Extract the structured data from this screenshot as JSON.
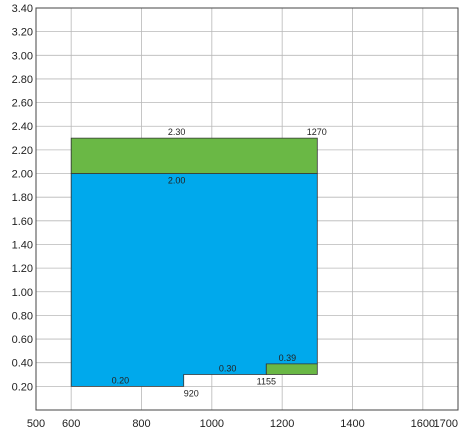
{
  "chart_data": {
    "type": "area",
    "title": "",
    "xlabel": "",
    "ylabel": "",
    "xlim": [
      500,
      1700
    ],
    "ylim": [
      0,
      3.4
    ],
    "x_ticks": [
      500,
      600,
      800,
      1000,
      1200,
      1400,
      1600,
      1700
    ],
    "x_tick_labels": [
      "500",
      "600",
      "800",
      "1000",
      "1200",
      "1400",
      "1600",
      "1700"
    ],
    "y_ticks": [
      0.2,
      0.4,
      0.6,
      0.8,
      1.0,
      1.2,
      1.4,
      1.6,
      1.8,
      2.0,
      2.2,
      2.4,
      2.6,
      2.8,
      3.0,
      3.2,
      3.4
    ],
    "y_tick_labels": [
      "0.20",
      "0.40",
      "0.60",
      "0.80",
      "1.00",
      "1.20",
      "1.40",
      "1.60",
      "1.80",
      "2.00",
      "2.20",
      "2.40",
      "2.60",
      "2.80",
      "3.00",
      "3.20",
      "3.40"
    ],
    "grid": true,
    "regions": [
      {
        "color": "#00a9ec",
        "points": [
          [
            600,
            0.2
          ],
          [
            920,
            0.2
          ],
          [
            920,
            0.3
          ],
          [
            1155,
            0.3
          ],
          [
            1155,
            0.39
          ],
          [
            1300,
            0.39
          ],
          [
            1300,
            2.0
          ],
          [
            600,
            2.0
          ]
        ]
      },
      {
        "color": "#6ab845",
        "points": [
          [
            600,
            2.0
          ],
          [
            1300,
            2.0
          ],
          [
            1300,
            2.3
          ],
          [
            600,
            2.3
          ]
        ]
      },
      {
        "color": "#6ab845",
        "points": [
          [
            1155,
            0.3
          ],
          [
            1300,
            0.3
          ],
          [
            1300,
            0.39
          ],
          [
            1155,
            0.39
          ]
        ]
      }
    ],
    "annotations": [
      {
        "text": "2.30",
        "x": 900,
        "y": 2.3,
        "anchor": "middle",
        "valign": "above"
      },
      {
        "text": "1270",
        "x": 1270,
        "y": 2.3,
        "anchor": "start",
        "valign": "above"
      },
      {
        "text": "2.00",
        "x": 900,
        "y": 2.0,
        "anchor": "middle",
        "valign": "below"
      },
      {
        "text": "0.20",
        "x": 740,
        "y": 0.2,
        "anchor": "middle",
        "valign": "above"
      },
      {
        "text": "920",
        "x": 920,
        "y": 0.2,
        "anchor": "start",
        "valign": "below"
      },
      {
        "text": "0.30",
        "x": 1045,
        "y": 0.3,
        "anchor": "middle",
        "valign": "above"
      },
      {
        "text": "0.39",
        "x": 1190,
        "y": 0.39,
        "anchor": "start",
        "valign": "above"
      },
      {
        "text": "1155",
        "x": 1155,
        "y": 0.3,
        "anchor": "middle",
        "valign": "below"
      }
    ]
  }
}
